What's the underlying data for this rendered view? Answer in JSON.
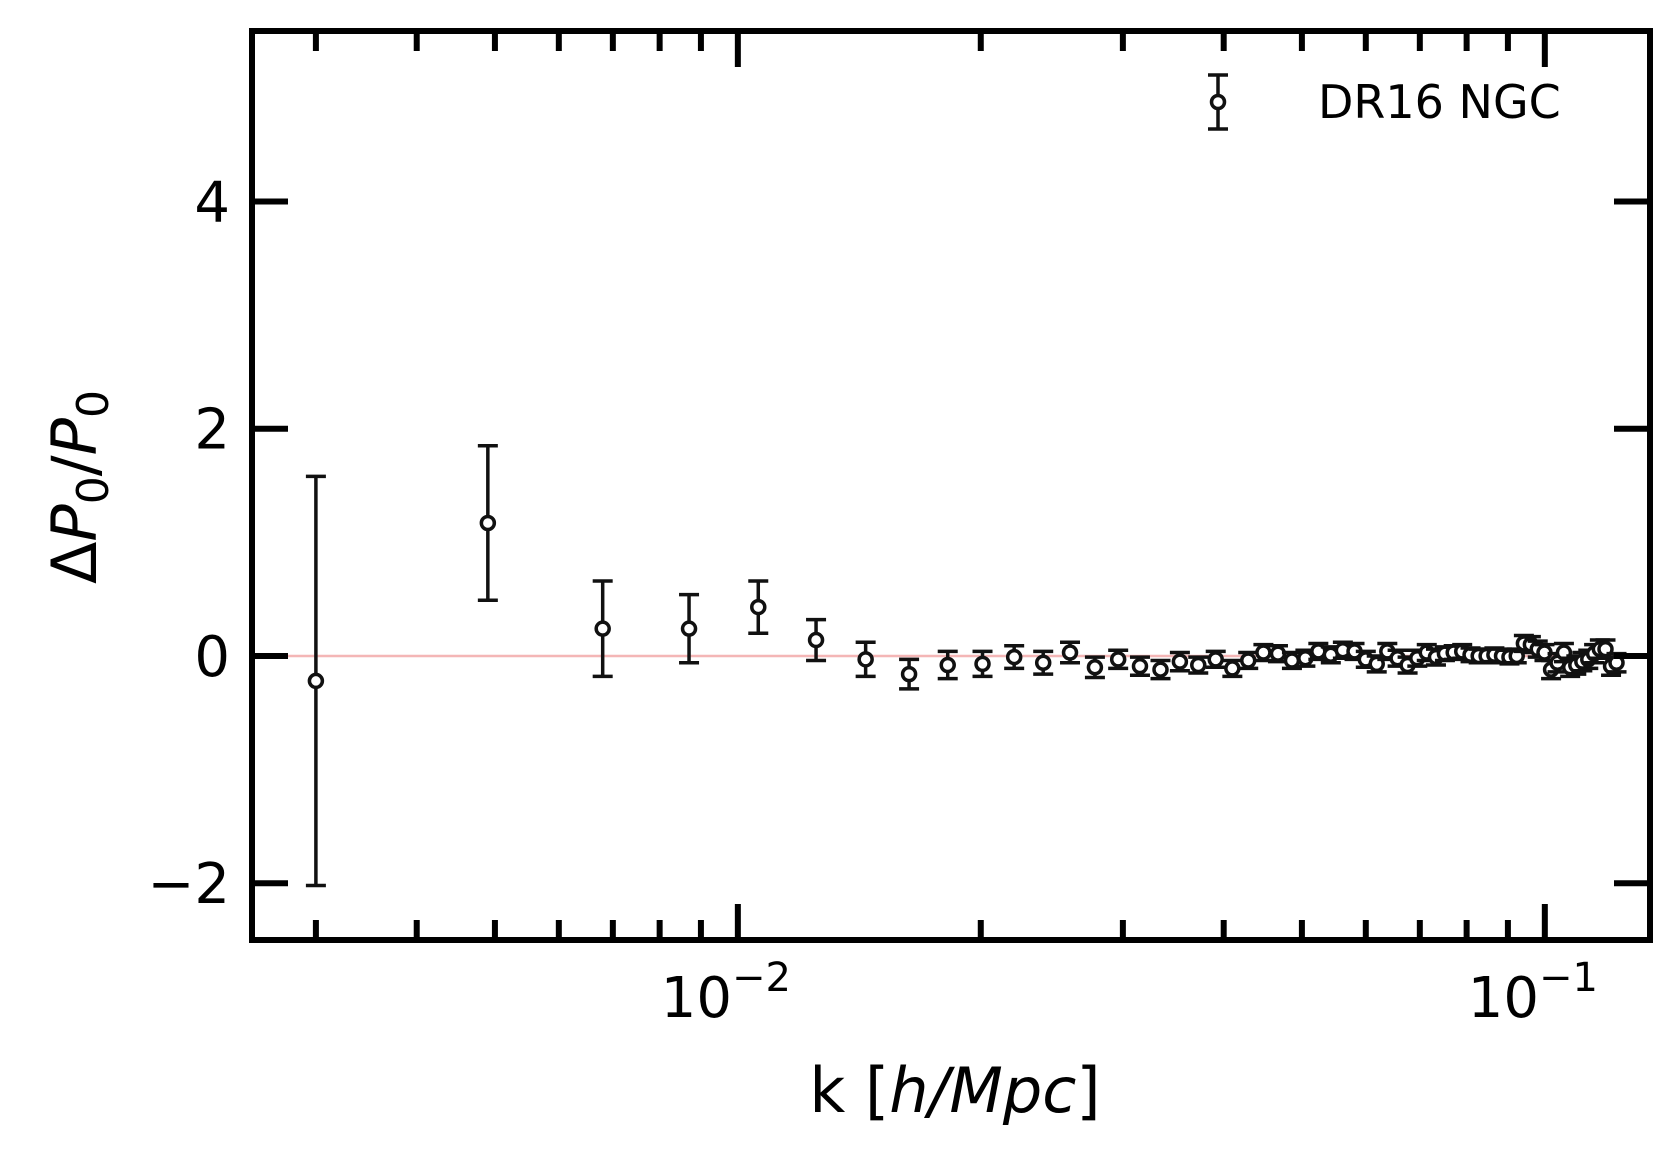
{
  "chart_data": {
    "type": "scatter",
    "x_scale": "log",
    "xlim": [
      0.0025,
      0.135
    ],
    "ylim": [
      -2.5,
      5.5
    ],
    "grid": false,
    "legend_position": "top-right",
    "xlabel": {
      "prefix": "k [",
      "italic": "h/Mpc",
      "suffix": "]"
    },
    "ylabel": {
      "delta": "Δ",
      "P": "P",
      "sub": "0",
      "slash": "/"
    },
    "x_ticks": [
      {
        "value": 0.01,
        "base": "10",
        "exp": "−2"
      },
      {
        "value": 0.1,
        "base": "10",
        "exp": "−1"
      }
    ],
    "y_ticks": [
      {
        "value": -2,
        "label": "−2"
      },
      {
        "value": 0,
        "label": "0"
      },
      {
        "value": 2,
        "label": "2"
      },
      {
        "value": 4,
        "label": "4"
      }
    ],
    "reference_line": {
      "y": 0,
      "color": "#f4b6b6"
    },
    "series": [
      {
        "name": "DR16 NGC",
        "color": "#111111",
        "marker": "open-circle",
        "points": [
          {
            "x": 0.003,
            "y": -0.22,
            "err": 1.8
          },
          {
            "x": 0.0049,
            "y": 1.17,
            "err": 0.68
          },
          {
            "x": 0.0068,
            "y": 0.24,
            "err": 0.42
          },
          {
            "x": 0.0087,
            "y": 0.24,
            "err": 0.3
          },
          {
            "x": 0.0106,
            "y": 0.43,
            "err": 0.23
          },
          {
            "x": 0.0125,
            "y": 0.14,
            "err": 0.18
          },
          {
            "x": 0.0144,
            "y": -0.03,
            "err": 0.15
          },
          {
            "x": 0.0163,
            "y": -0.16,
            "err": 0.13
          },
          {
            "x": 0.0182,
            "y": -0.08,
            "err": 0.12
          },
          {
            "x": 0.0201,
            "y": -0.07,
            "err": 0.11
          },
          {
            "x": 0.022,
            "y": -0.01,
            "err": 0.1
          },
          {
            "x": 0.0239,
            "y": -0.06,
            "err": 0.1
          },
          {
            "x": 0.0258,
            "y": 0.03,
            "err": 0.09
          },
          {
            "x": 0.0277,
            "y": -0.1,
            "err": 0.09
          },
          {
            "x": 0.0296,
            "y": -0.03,
            "err": 0.08
          },
          {
            "x": 0.0315,
            "y": -0.09,
            "err": 0.08
          },
          {
            "x": 0.0334,
            "y": -0.12,
            "err": 0.08
          },
          {
            "x": 0.0353,
            "y": -0.05,
            "err": 0.08
          },
          {
            "x": 0.0372,
            "y": -0.08,
            "err": 0.07
          },
          {
            "x": 0.0391,
            "y": -0.03,
            "err": 0.07
          },
          {
            "x": 0.041,
            "y": -0.11,
            "err": 0.07
          },
          {
            "x": 0.0429,
            "y": -0.04,
            "err": 0.07
          },
          {
            "x": 0.0448,
            "y": 0.03,
            "err": 0.07
          },
          {
            "x": 0.0467,
            "y": 0.02,
            "err": 0.07
          },
          {
            "x": 0.0486,
            "y": -0.04,
            "err": 0.07
          },
          {
            "x": 0.0505,
            "y": -0.02,
            "err": 0.07
          },
          {
            "x": 0.0524,
            "y": 0.04,
            "err": 0.07
          },
          {
            "x": 0.0543,
            "y": 0.01,
            "err": 0.07
          },
          {
            "x": 0.0562,
            "y": 0.05,
            "err": 0.07
          },
          {
            "x": 0.0581,
            "y": 0.04,
            "err": 0.07
          },
          {
            "x": 0.06,
            "y": -0.03,
            "err": 0.07
          },
          {
            "x": 0.0619,
            "y": -0.07,
            "err": 0.07
          },
          {
            "x": 0.0638,
            "y": 0.04,
            "err": 0.07
          },
          {
            "x": 0.0657,
            "y": -0.02,
            "err": 0.07
          },
          {
            "x": 0.0676,
            "y": -0.08,
            "err": 0.07
          },
          {
            "x": 0.0695,
            "y": -0.02,
            "err": 0.07
          },
          {
            "x": 0.0714,
            "y": 0.03,
            "err": 0.07
          },
          {
            "x": 0.0733,
            "y": -0.01,
            "err": 0.07
          },
          {
            "x": 0.0752,
            "y": 0.02,
            "err": 0.06
          },
          {
            "x": 0.0771,
            "y": 0.03,
            "err": 0.06
          },
          {
            "x": 0.079,
            "y": 0.04,
            "err": 0.06
          },
          {
            "x": 0.0809,
            "y": 0.01,
            "err": 0.06
          },
          {
            "x": 0.0828,
            "y": 0.0,
            "err": 0.06
          },
          {
            "x": 0.0847,
            "y": 0.0,
            "err": 0.06
          },
          {
            "x": 0.0866,
            "y": 0.01,
            "err": 0.06
          },
          {
            "x": 0.0885,
            "y": 0.0,
            "err": 0.06
          },
          {
            "x": 0.0904,
            "y": -0.01,
            "err": 0.06
          },
          {
            "x": 0.0923,
            "y": 0.0,
            "err": 0.06
          },
          {
            "x": 0.0942,
            "y": 0.11,
            "err": 0.07
          },
          {
            "x": 0.0961,
            "y": 0.1,
            "err": 0.07
          },
          {
            "x": 0.098,
            "y": 0.06,
            "err": 0.07
          },
          {
            "x": 0.0999,
            "y": 0.03,
            "err": 0.07
          },
          {
            "x": 0.1018,
            "y": -0.12,
            "err": 0.08
          },
          {
            "x": 0.1037,
            "y": -0.06,
            "err": 0.08
          },
          {
            "x": 0.1056,
            "y": 0.03,
            "err": 0.08
          },
          {
            "x": 0.1075,
            "y": -0.1,
            "err": 0.08
          },
          {
            "x": 0.1094,
            "y": -0.08,
            "err": 0.08
          },
          {
            "x": 0.1113,
            "y": -0.05,
            "err": 0.08
          },
          {
            "x": 0.1132,
            "y": -0.03,
            "err": 0.08
          },
          {
            "x": 0.1151,
            "y": 0.02,
            "err": 0.08
          },
          {
            "x": 0.117,
            "y": 0.06,
            "err": 0.08
          },
          {
            "x": 0.1189,
            "y": 0.06,
            "err": 0.08
          },
          {
            "x": 0.1208,
            "y": -0.09,
            "err": 0.08
          },
          {
            "x": 0.1227,
            "y": -0.06,
            "err": 0.08
          }
        ]
      }
    ]
  }
}
